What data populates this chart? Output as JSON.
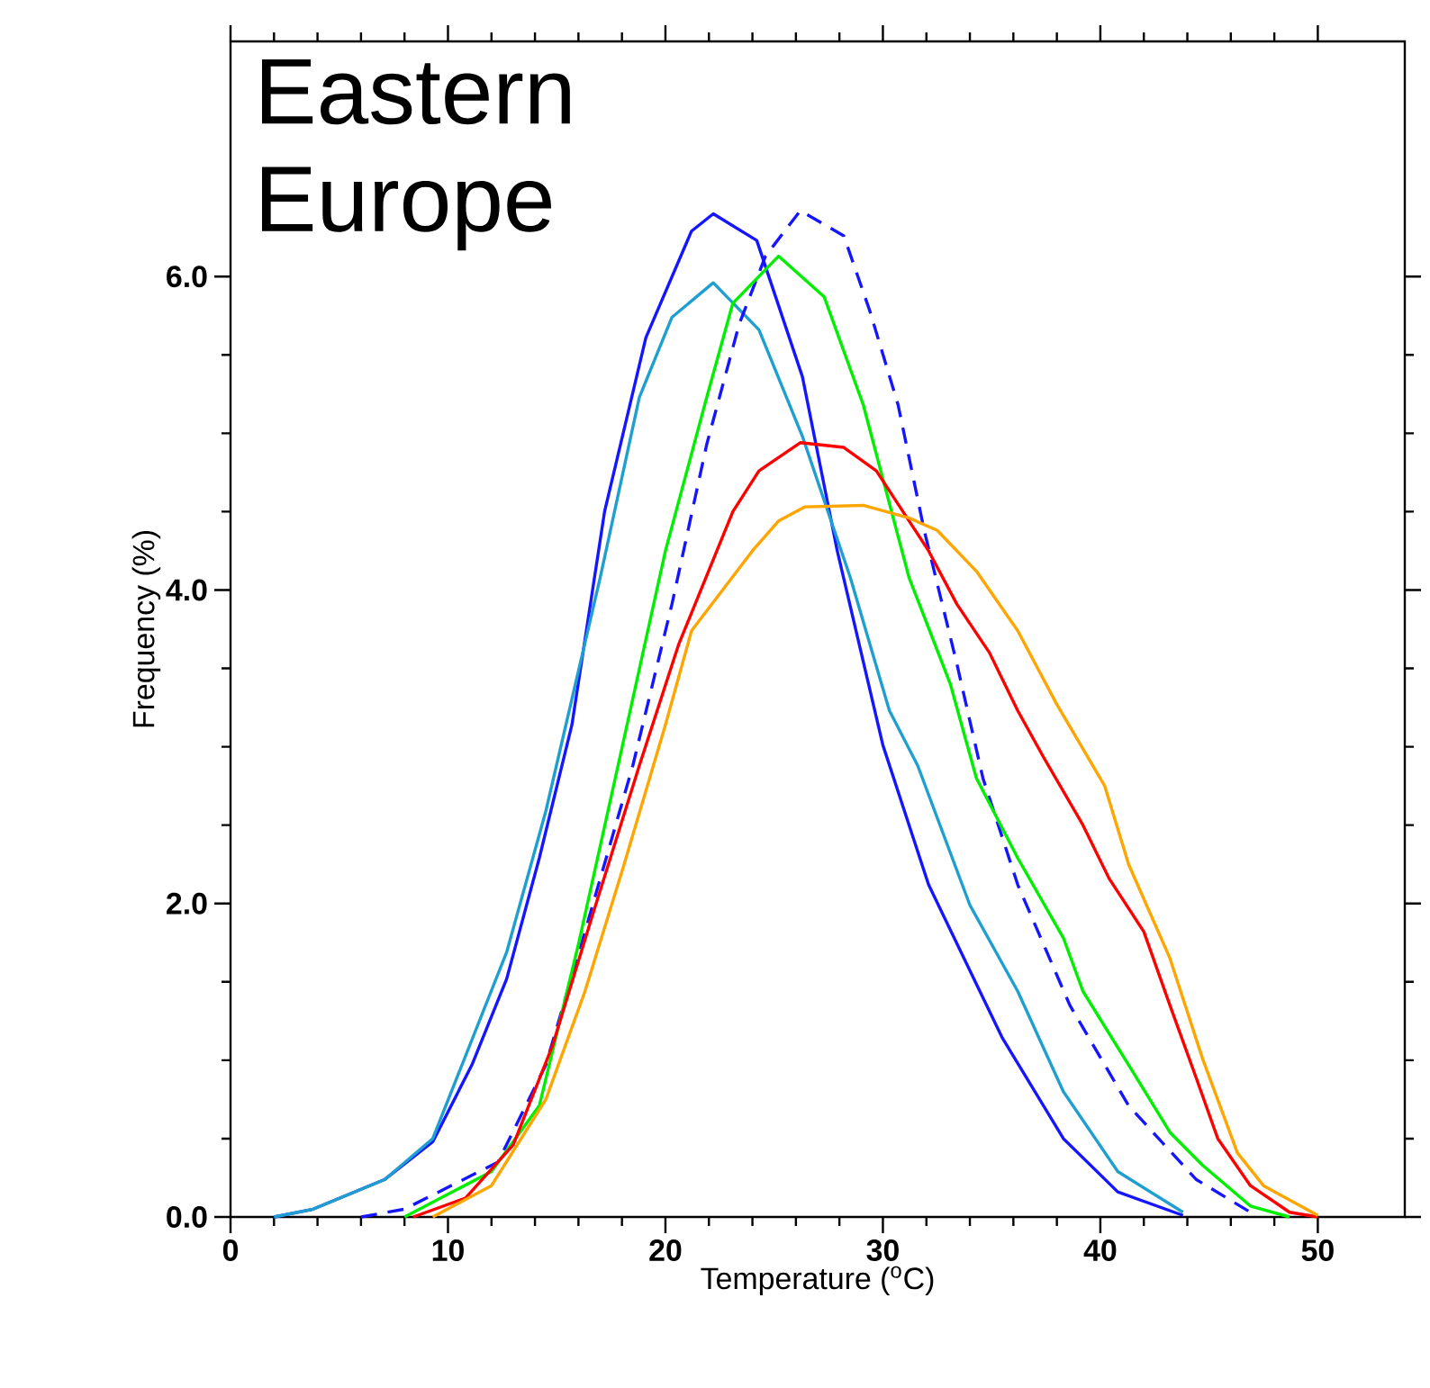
{
  "chart_data": {
    "type": "line",
    "title": "Eastern Europe",
    "xlabel": "Temperature ($^{o}$C)",
    "ylabel": "Frequency (%)",
    "xlim": [
      0,
      54
    ],
    "ylim": [
      0,
      7.5
    ],
    "xticks": [
      0,
      10,
      20,
      30,
      40,
      50
    ],
    "yticks": [
      {
        "value": 0,
        "label": "0.0"
      },
      {
        "value": 2,
        "label": "2.0"
      },
      {
        "value": 4,
        "label": "4.0"
      },
      {
        "value": 6,
        "label": "6.0"
      }
    ],
    "grid": false,
    "marker": "none",
    "series": [
      {
        "color": "#1515ff",
        "line_style": "solid",
        "x": [
          2.0,
          3.8,
          7.1,
          9.3,
          11.1,
          12.7,
          14.2,
          15.7,
          17.2,
          19.1,
          21.2,
          22.2,
          24.2,
          26.3,
          27.9,
          30.0,
          32.1,
          35.5,
          38.3,
          40.8,
          43.8
        ],
        "values": [
          0,
          0.05,
          0.24,
          0.48,
          0.97,
          1.52,
          2.29,
          3.14,
          4.5,
          5.61,
          6.29,
          6.4,
          6.23,
          5.36,
          4.25,
          3.01,
          2.12,
          1.14,
          0.5,
          0.16,
          0.01
        ]
      },
      {
        "color": "#1f9fd0",
        "line_style": "solid",
        "x": [
          2.0,
          3.8,
          7.1,
          9.3,
          12.7,
          14.5,
          17.0,
          18.8,
          20.3,
          22.2,
          24.3,
          26.3,
          28.5,
          30.3,
          31.6,
          34.0,
          36.2,
          38.3,
          40.8,
          43.8
        ],
        "values": [
          0,
          0.05,
          0.24,
          0.5,
          1.69,
          2.59,
          4.08,
          5.23,
          5.74,
          5.96,
          5.66,
          4.98,
          4.08,
          3.23,
          2.88,
          1.99,
          1.44,
          0.8,
          0.29,
          0.03
        ]
      },
      {
        "color": "#1515ff",
        "line_style": "dashed",
        "x": [
          6.0,
          8.0,
          12.3,
          14.5,
          16.3,
          18.5,
          20.3,
          21.9,
          23.4,
          24.6,
          26.2,
          28.2,
          29.4,
          30.7,
          31.9,
          33.4,
          34.6,
          36.2,
          38.6,
          41.3,
          44.4,
          46.9
        ],
        "values": [
          0,
          0.05,
          0.35,
          0.97,
          1.82,
          2.88,
          3.91,
          4.93,
          5.7,
          6.13,
          6.42,
          6.26,
          5.78,
          5.18,
          4.38,
          3.53,
          2.8,
          2.12,
          1.35,
          0.71,
          0.24,
          0.03
        ]
      },
      {
        "color": "#00ee00",
        "line_style": "solid",
        "x": [
          8.0,
          12.0,
          14.2,
          16.0,
          17.9,
          20.0,
          21.9,
          23.1,
          25.2,
          27.3,
          29.1,
          31.2,
          33.1,
          34.3,
          36.2,
          38.3,
          39.2,
          41.3,
          43.2,
          44.7,
          46.9,
          48.7
        ],
        "values": [
          0,
          0.29,
          0.71,
          1.74,
          2.93,
          4.25,
          5.23,
          5.83,
          6.13,
          5.87,
          5.18,
          4.08,
          3.4,
          2.8,
          2.29,
          1.78,
          1.44,
          0.97,
          0.54,
          0.33,
          0.07,
          0
        ]
      },
      {
        "color": "#ff0000",
        "line_style": "solid",
        "x": [
          8.4,
          10.8,
          13.0,
          14.8,
          16.7,
          18.8,
          20.6,
          23.1,
          24.3,
          26.2,
          28.2,
          29.7,
          32.1,
          33.4,
          34.9,
          36.2,
          37.4,
          39.2,
          40.4,
          42.0,
          43.2,
          44.4,
          45.4,
          46.9,
          48.7,
          50.0
        ],
        "values": [
          0,
          0.12,
          0.46,
          1.09,
          1.95,
          2.88,
          3.65,
          4.5,
          4.76,
          4.94,
          4.91,
          4.76,
          4.25,
          3.91,
          3.6,
          3.23,
          2.93,
          2.5,
          2.16,
          1.82,
          1.35,
          0.89,
          0.5,
          0.2,
          0.03,
          0
        ]
      },
      {
        "color": "#ffa500",
        "line_style": "solid",
        "x": [
          9.3,
          12.0,
          14.5,
          16.3,
          18.1,
          20.0,
          21.2,
          24.0,
          25.2,
          26.4,
          29.1,
          31.2,
          32.5,
          34.3,
          36.2,
          38.0,
          40.2,
          41.3,
          43.2,
          44.7,
          46.3,
          47.5,
          50.0
        ],
        "values": [
          0,
          0.2,
          0.75,
          1.44,
          2.25,
          3.14,
          3.74,
          4.25,
          4.44,
          4.53,
          4.54,
          4.46,
          4.38,
          4.12,
          3.74,
          3.27,
          2.75,
          2.25,
          1.65,
          1.01,
          0.41,
          0.2,
          0.01
        ]
      }
    ]
  }
}
